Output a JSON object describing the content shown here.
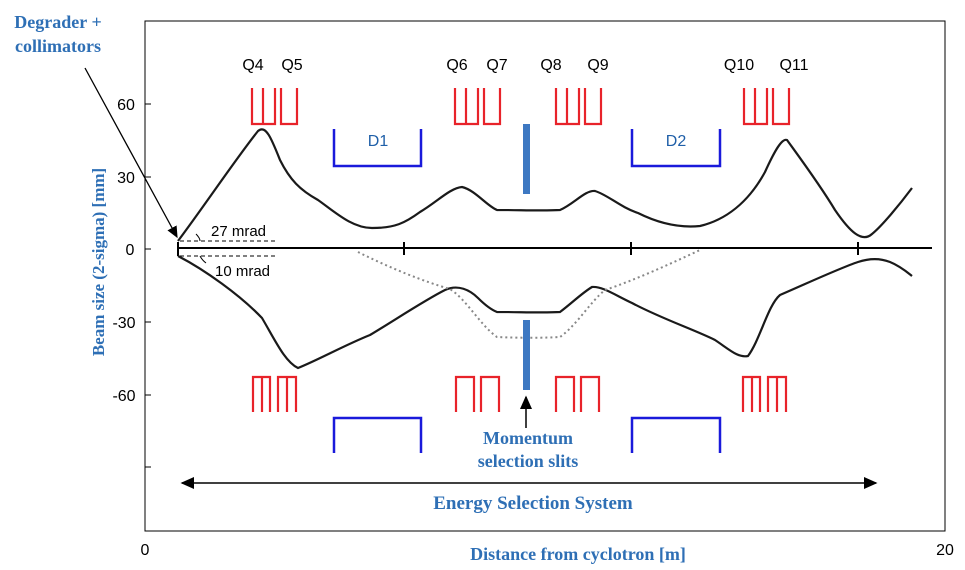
{
  "labels": {
    "degrader_line1": "Degrader +",
    "degrader_line2": "collimators",
    "y_axis": "Beam size (2-sigma) [mm]",
    "x_axis": "Distance from cyclotron [m]",
    "x_tick_0": "0",
    "x_tick_20": "20",
    "angle_upper": "27 mrad",
    "angle_lower": "10 mrad",
    "slits_line1": "Momentum",
    "slits_line2": "selection slits",
    "system": "Energy Selection System"
  },
  "y_ticks": [
    "60",
    "30",
    "0",
    "-30",
    "-60"
  ],
  "quadrupoles": [
    "Q4",
    "Q5",
    "Q6",
    "Q7",
    "Q8",
    "Q9",
    "Q10",
    "Q11"
  ],
  "dipoles": [
    "D1",
    "D2"
  ],
  "colors": {
    "quadrupole": "#e8232a",
    "dipole": "#1a1adb",
    "slit": "#3d78c2",
    "annotation": "#2e6fb5"
  }
}
